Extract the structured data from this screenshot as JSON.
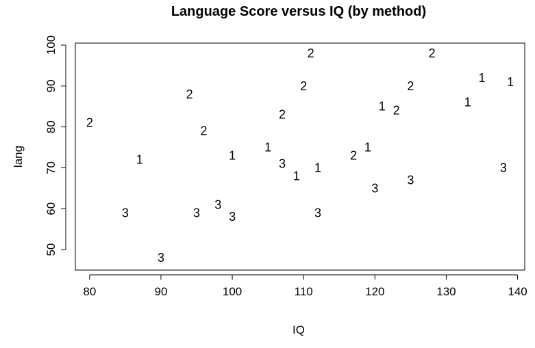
{
  "chart_data": {
    "type": "scatter",
    "title": "Language Score versus IQ (by method)",
    "xlabel": "IQ",
    "ylabel": "lang",
    "xlim": [
      78,
      141
    ],
    "ylim": [
      45,
      100.5
    ],
    "xticks": [
      80,
      90,
      100,
      110,
      120,
      130,
      140
    ],
    "yticks": [
      50,
      60,
      70,
      80,
      90,
      100
    ],
    "grid": false,
    "points": [
      {
        "x": 80,
        "y": 81,
        "label": "2"
      },
      {
        "x": 85,
        "y": 59,
        "label": "3"
      },
      {
        "x": 87,
        "y": 72,
        "label": "1"
      },
      {
        "x": 90,
        "y": 48,
        "label": "3"
      },
      {
        "x": 94,
        "y": 88,
        "label": "2"
      },
      {
        "x": 95,
        "y": 59,
        "label": "3"
      },
      {
        "x": 96,
        "y": 79,
        "label": "2"
      },
      {
        "x": 98,
        "y": 61,
        "label": "3"
      },
      {
        "x": 100,
        "y": 73,
        "label": "1"
      },
      {
        "x": 100,
        "y": 58,
        "label": "3"
      },
      {
        "x": 105,
        "y": 75,
        "label": "1"
      },
      {
        "x": 107,
        "y": 83,
        "label": "2"
      },
      {
        "x": 107,
        "y": 71,
        "label": "3"
      },
      {
        "x": 109,
        "y": 68,
        "label": "1"
      },
      {
        "x": 110,
        "y": 90,
        "label": "2"
      },
      {
        "x": 111,
        "y": 98,
        "label": "2"
      },
      {
        "x": 112,
        "y": 70,
        "label": "1"
      },
      {
        "x": 112,
        "y": 59,
        "label": "3"
      },
      {
        "x": 117,
        "y": 73,
        "label": "2"
      },
      {
        "x": 119,
        "y": 75,
        "label": "1"
      },
      {
        "x": 120,
        "y": 65,
        "label": "3"
      },
      {
        "x": 121,
        "y": 85,
        "label": "1"
      },
      {
        "x": 123,
        "y": 84,
        "label": "2"
      },
      {
        "x": 125,
        "y": 90,
        "label": "2"
      },
      {
        "x": 125,
        "y": 67,
        "label": "3"
      },
      {
        "x": 128,
        "y": 98,
        "label": "2"
      },
      {
        "x": 133,
        "y": 86,
        "label": "1"
      },
      {
        "x": 135,
        "y": 92,
        "label": "1"
      },
      {
        "x": 138,
        "y": 70,
        "label": "3"
      },
      {
        "x": 139,
        "y": 91,
        "label": "1"
      }
    ]
  }
}
